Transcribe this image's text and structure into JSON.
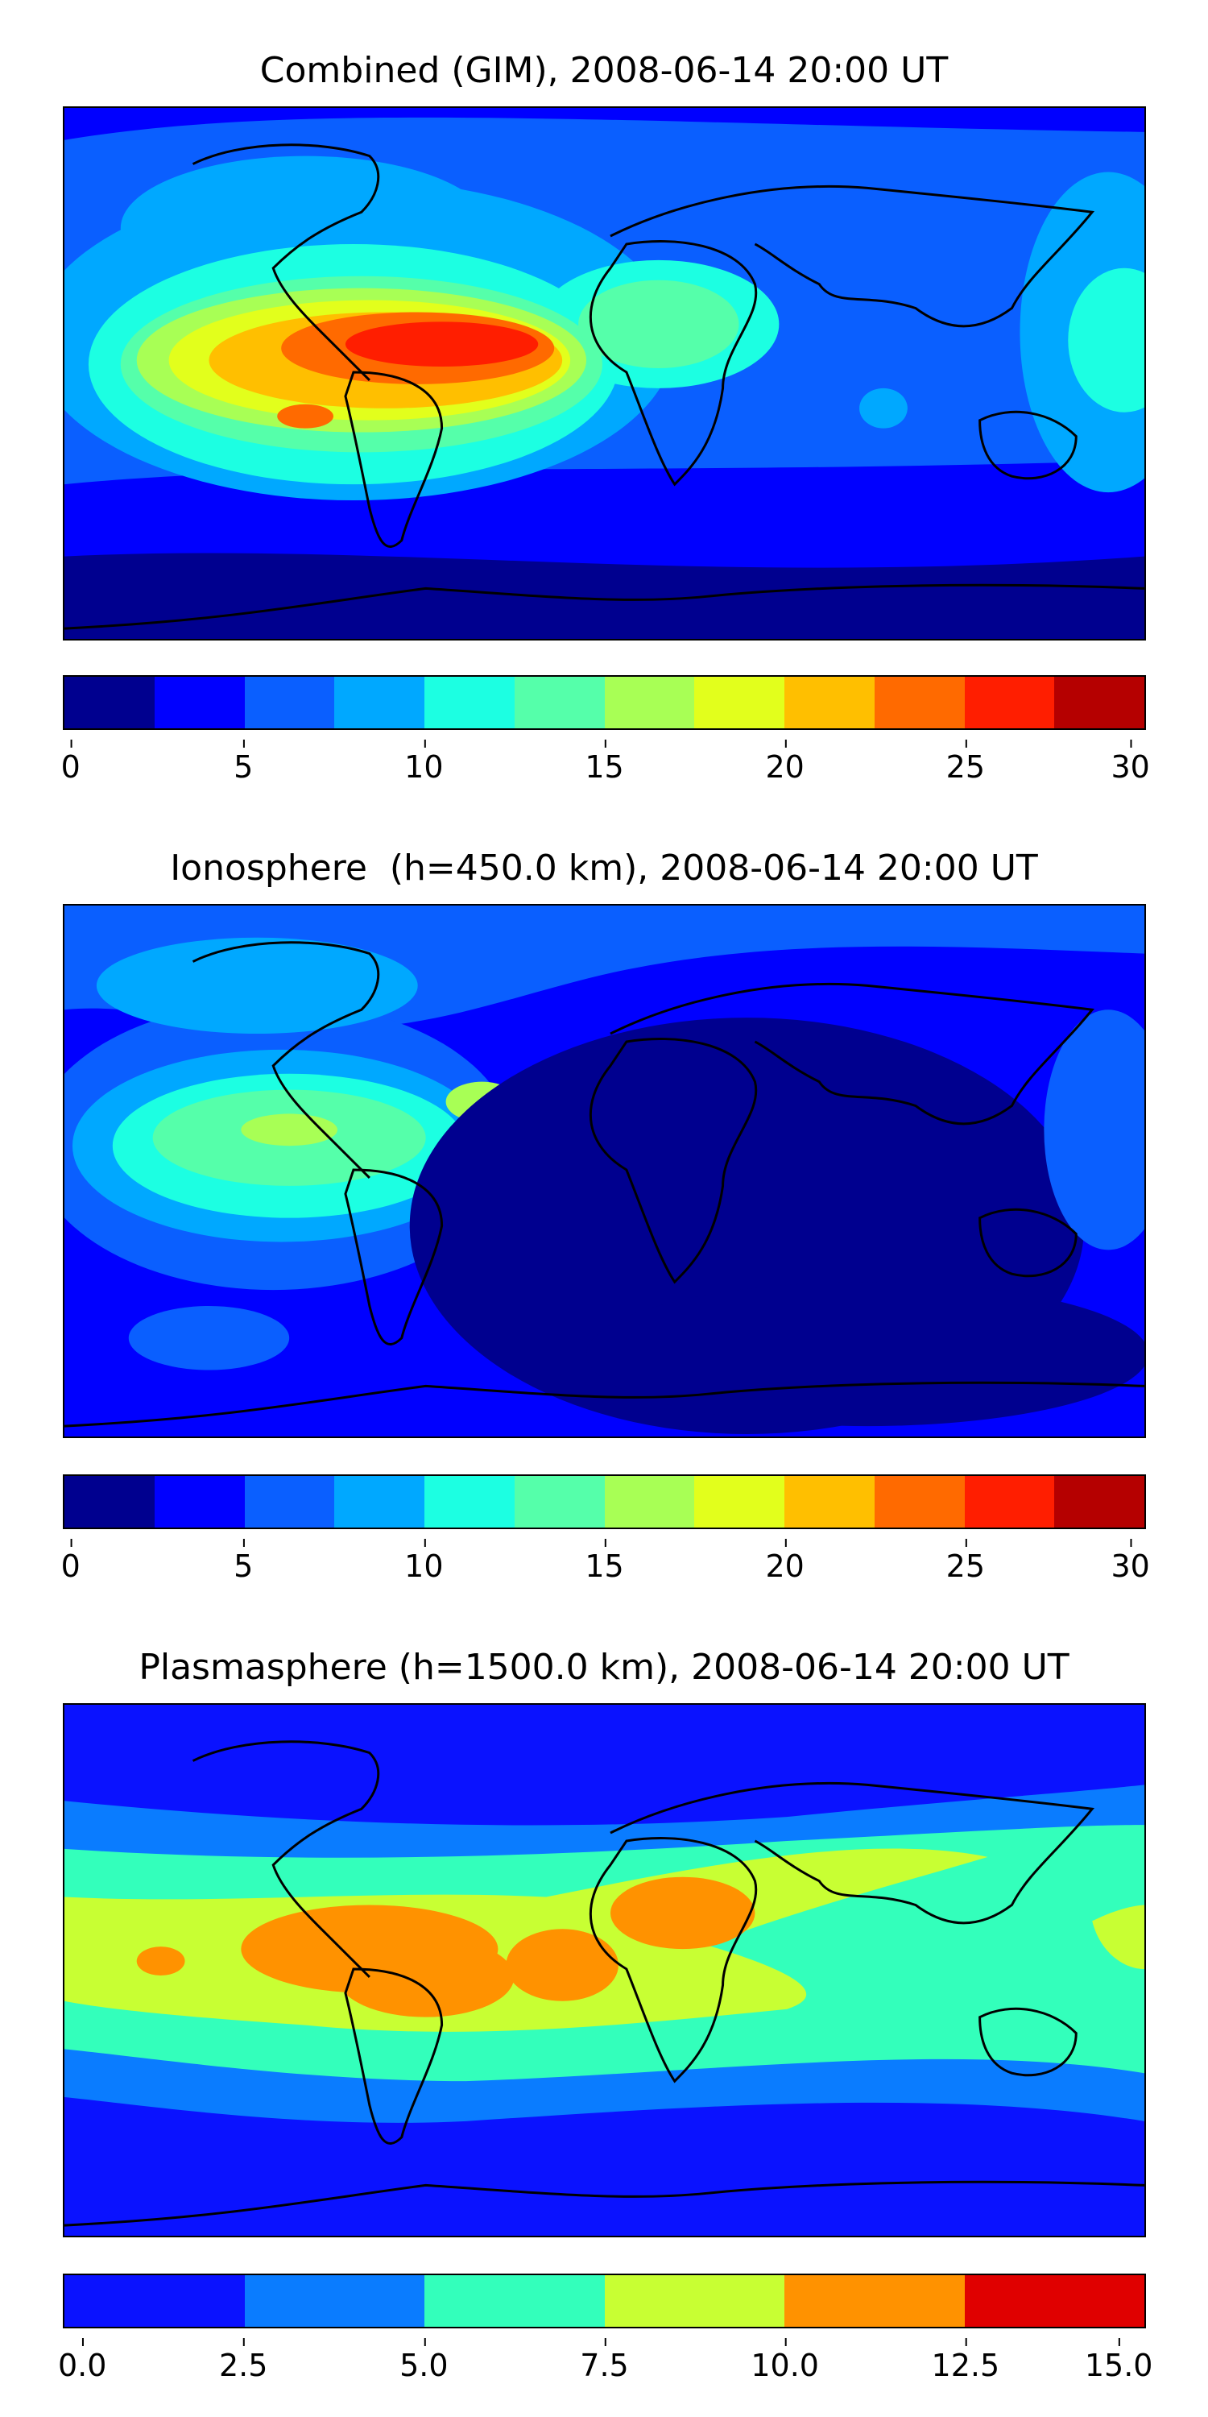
{
  "panels": [
    {
      "title": "Combined (GIM), 2008-06-14 20:00 UT",
      "colorbar": {
        "colors": [
          "#00008f",
          "#0000ff",
          "#0a5fff",
          "#00a8ff",
          "#1cffe2",
          "#55ffaa",
          "#a8ff55",
          "#e2ff1c",
          "#ffbf00",
          "#ff6a00",
          "#ff1e00",
          "#b50000"
        ],
        "ticks": [
          "0",
          "5",
          "10",
          "15",
          "20",
          "25",
          "30"
        ]
      }
    },
    {
      "title": "Ionosphere  (h=450.0 km), 2008-06-14 20:00 UT",
      "colorbar": {
        "colors": [
          "#00008f",
          "#0000ff",
          "#0a5fff",
          "#00a8ff",
          "#1cffe2",
          "#55ffaa",
          "#a8ff55",
          "#e2ff1c",
          "#ffbf00",
          "#ff6a00",
          "#ff1e00",
          "#b50000"
        ],
        "ticks": [
          "0",
          "5",
          "10",
          "15",
          "20",
          "25",
          "30"
        ]
      }
    },
    {
      "title": "Plasmasphere (h=1500.0 km), 2008-06-14 20:00 UT",
      "colorbar": {
        "colors": [
          "#0a12ff",
          "#0a7cff",
          "#33ffbb",
          "#c8ff33",
          "#ff9200",
          "#e00000"
        ],
        "ticks": [
          "0.0",
          "2.5",
          "5.0",
          "7.5",
          "10.0",
          "12.5",
          "15.0"
        ]
      }
    }
  ]
}
